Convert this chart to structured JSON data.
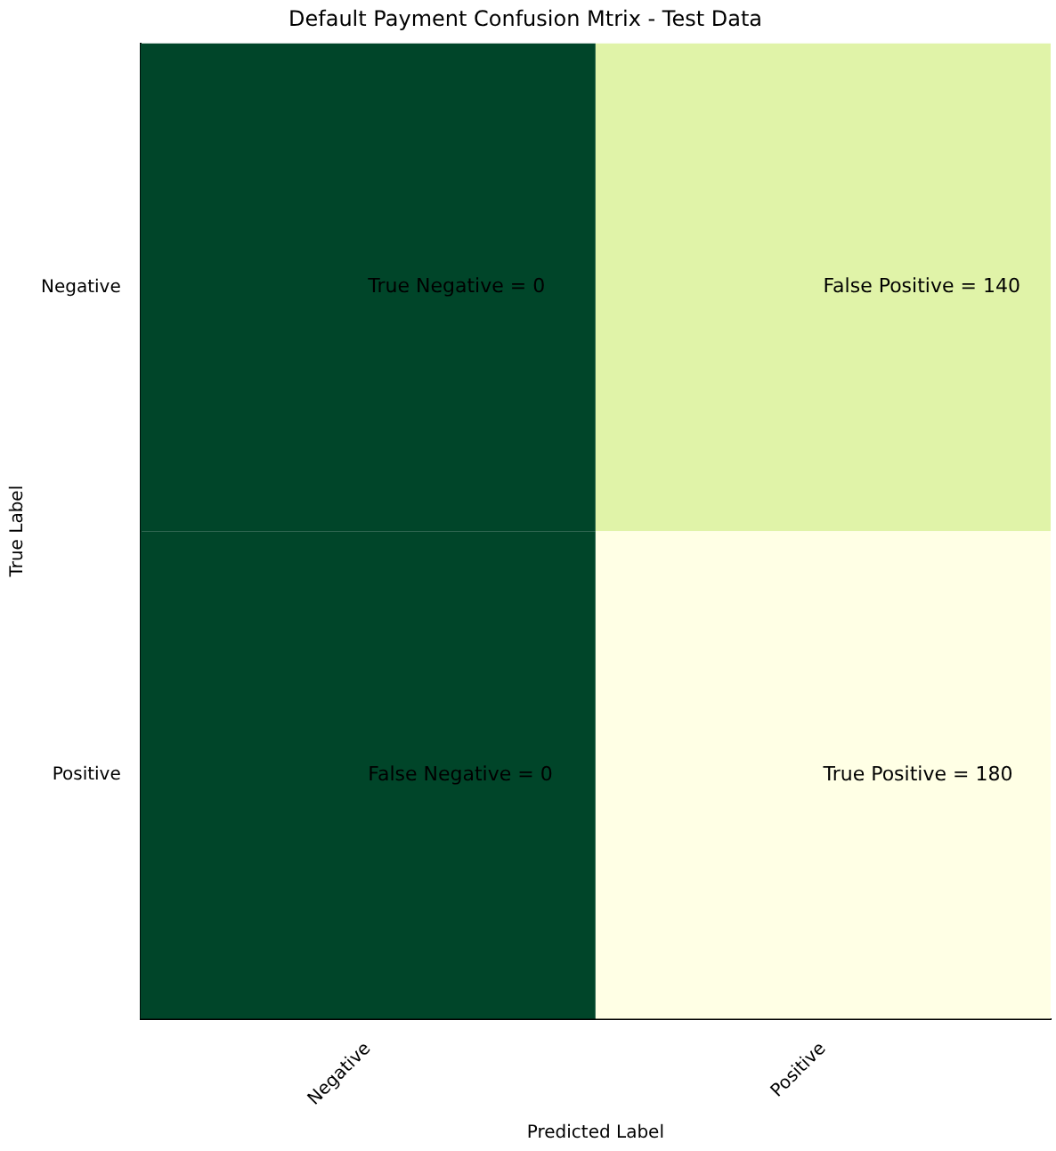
{
  "chart_data": {
    "type": "heatmap",
    "title": "Default Payment Confusion Mtrix - Test Data",
    "xlabel": "Predicted Label",
    "ylabel": "True Label",
    "categories": [
      "Negative",
      "Positive"
    ],
    "y_categories": [
      "Negative",
      "Positive"
    ],
    "cells": [
      [
        0,
        140
      ],
      [
        0,
        180
      ]
    ],
    "cell_labels": [
      [
        "True Negative = 0",
        "False Positive = 140"
      ],
      [
        "False Negative = 0",
        "True Positive = 180"
      ]
    ]
  }
}
